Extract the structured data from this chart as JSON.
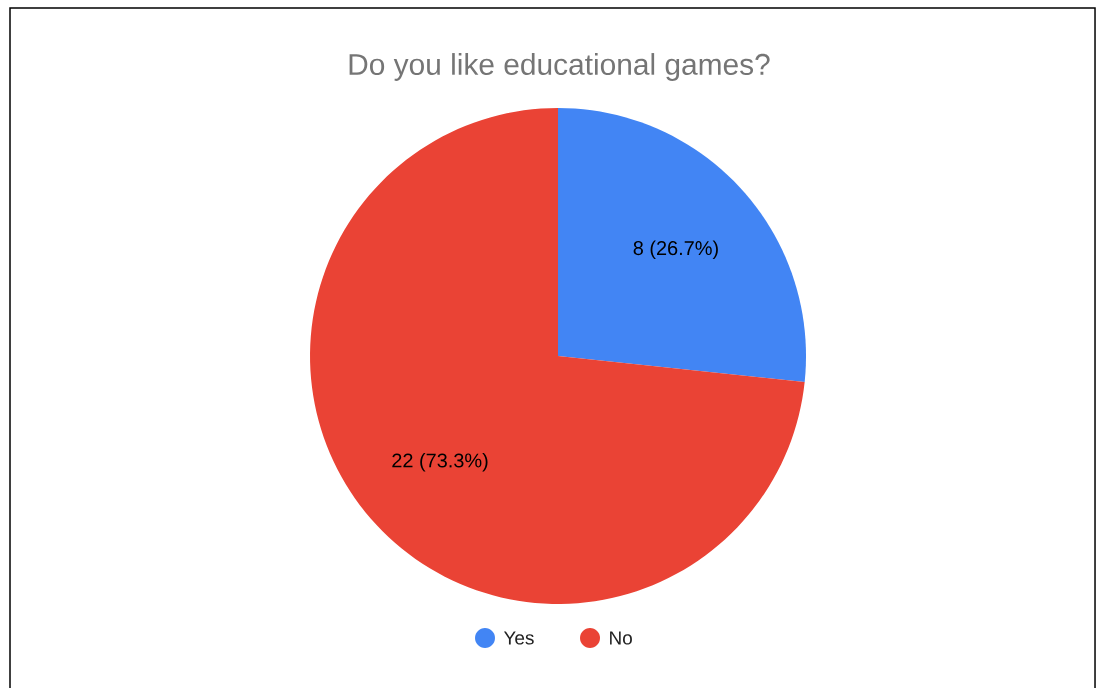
{
  "chart_data": {
    "type": "pie",
    "title": "Do you like educational games?",
    "categories": [
      "Yes",
      "No"
    ],
    "values": [
      8,
      22
    ],
    "colors": [
      "#4285f4",
      "#ea4335"
    ],
    "value_labels": [
      "8 (26.7%)",
      "22 (73.3%)"
    ],
    "legend": "bottom"
  }
}
